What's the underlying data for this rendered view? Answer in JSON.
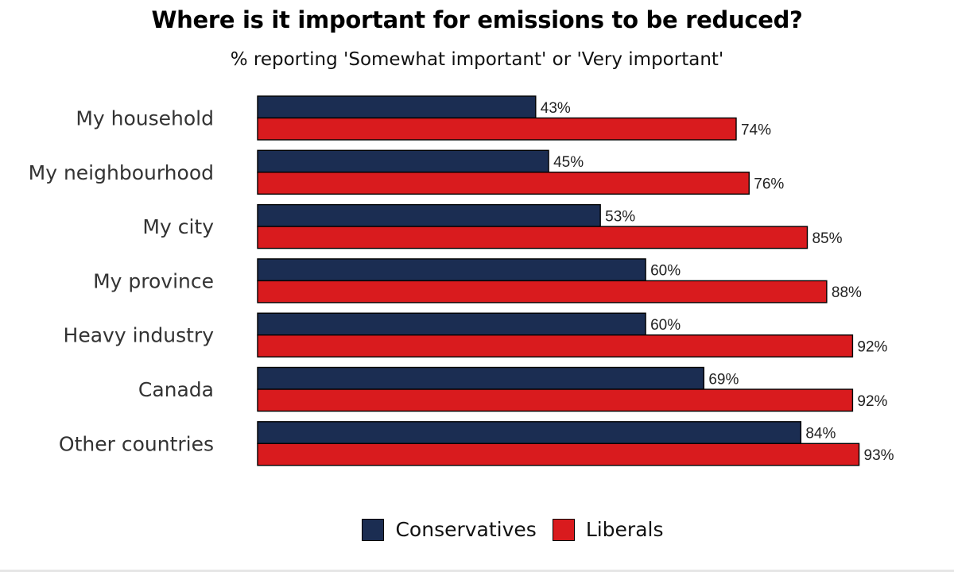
{
  "chart_data": {
    "type": "bar",
    "orientation": "horizontal",
    "title": "Where is it important for emissions to be reduced?",
    "subtitle": "% reporting 'Somewhat important' or 'Very important'",
    "categories": [
      "My household",
      "My neighbourhood",
      "My city",
      "My province",
      "Heavy industry",
      "Canada",
      "Other countries"
    ],
    "series": [
      {
        "name": "Conservatives",
        "color": "#1b2d52",
        "values": [
          43,
          45,
          53,
          60,
          60,
          69,
          84
        ],
        "labels": [
          "43%",
          "45%",
          "53%",
          "60%",
          "60%",
          "69%",
          "84%"
        ]
      },
      {
        "name": "Liberals",
        "color": "#d91b1e",
        "values": [
          74,
          76,
          85,
          88,
          92,
          92,
          93
        ],
        "labels": [
          "74%",
          "76%",
          "85%",
          "88%",
          "92%",
          "92%",
          "93%"
        ]
      }
    ],
    "xlim": [
      0,
      100
    ],
    "grid": false,
    "legend_position": "bottom"
  }
}
